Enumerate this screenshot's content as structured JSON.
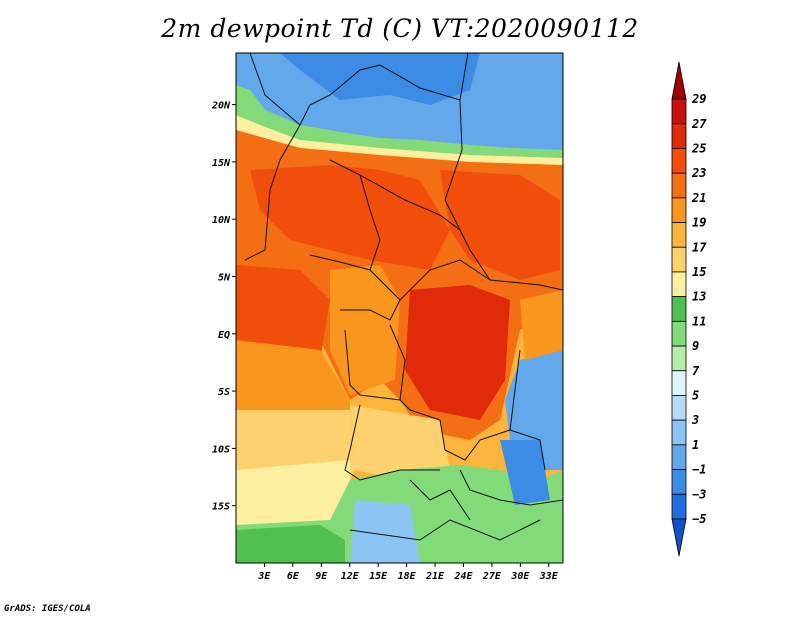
{
  "title": "2m dewpoint Td (C) VT:2020090112",
  "credit": "GrADS: IGES/COLA",
  "map": {
    "lat_labels": [
      "20N",
      "15N",
      "10N",
      "5N",
      "EQ",
      "5S",
      "10S",
      "15S"
    ],
    "lat_values": [
      20,
      15,
      10,
      5,
      0,
      -5,
      -10,
      -15
    ],
    "lon_labels": [
      "3E",
      "6E",
      "9E",
      "12E",
      "15E",
      "18E",
      "21E",
      "24E",
      "27E",
      "30E",
      "33E"
    ],
    "lon_values": [
      3,
      6,
      9,
      12,
      15,
      18,
      21,
      24,
      27,
      30,
      33
    ],
    "lon_range": [
      0,
      34.5
    ],
    "lat_range": [
      -20,
      24.5
    ]
  },
  "colorbar": {
    "labels": [
      "29",
      "27",
      "25",
      "23",
      "21",
      "19",
      "17",
      "15",
      "13",
      "11",
      "9",
      "7",
      "5",
      "3",
      "1",
      "−1",
      "−3",
      "−5"
    ],
    "colors": [
      "#a00000",
      "#c81010",
      "#e02a0a",
      "#f04e0a",
      "#f46e14",
      "#f8961e",
      "#fbb43c",
      "#fdd26e",
      "#fcf0a0",
      "#50c050",
      "#82da78",
      "#b4eeaa",
      "#e0f6ff",
      "#b4dcfa",
      "#8cc4f4",
      "#64a8ec",
      "#3c8ce6",
      "#1e6ee0",
      "#1450c8"
    ]
  }
}
